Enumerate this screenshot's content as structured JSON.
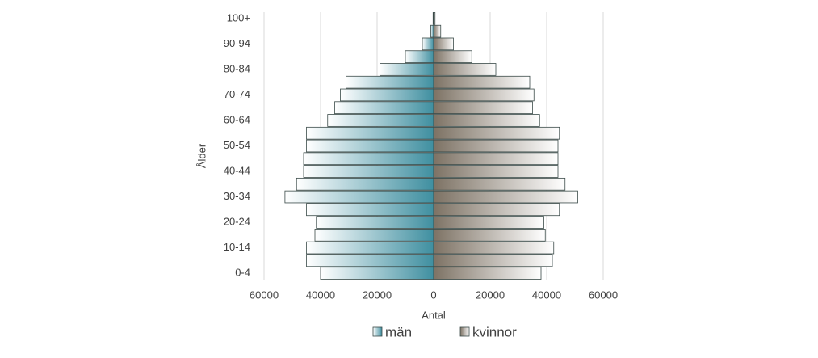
{
  "chart_data": {
    "type": "pyramid",
    "xlabel": "Antal",
    "ylabel": "Ålder",
    "categories": [
      "0-4",
      null,
      "10-14",
      null,
      "20-24",
      null,
      "30-34",
      null,
      "40-44",
      null,
      "50-54",
      null,
      "60-64",
      null,
      "70-74",
      null,
      "80-84",
      null,
      "90-94",
      null,
      "100+"
    ],
    "series": [
      {
        "name": "män",
        "color": "#3f8fa0",
        "values": [
          -40000,
          -45000,
          -45000,
          -42000,
          -41500,
          -45000,
          -52600,
          -48500,
          -46000,
          -46000,
          -45000,
          -45000,
          -37500,
          -35000,
          -33000,
          -31000,
          -19000,
          -10000,
          -4000,
          -1000,
          -200
        ]
      },
      {
        "name": "kvinnor",
        "color": "#7d7264",
        "values": [
          38000,
          42000,
          42500,
          39500,
          39000,
          44500,
          51000,
          46500,
          44000,
          44000,
          44000,
          44500,
          37500,
          35000,
          35500,
          34000,
          22000,
          13500,
          7000,
          2500,
          500
        ]
      }
    ],
    "xlim": [
      -60000,
      60000
    ],
    "xticks": [
      {
        "value": -60000,
        "label": "60000"
      },
      {
        "value": -40000,
        "label": "40000"
      },
      {
        "value": -20000,
        "label": "20000"
      },
      0,
      20000,
      40000,
      60000
    ],
    "grid": true,
    "legend": "bottom"
  }
}
